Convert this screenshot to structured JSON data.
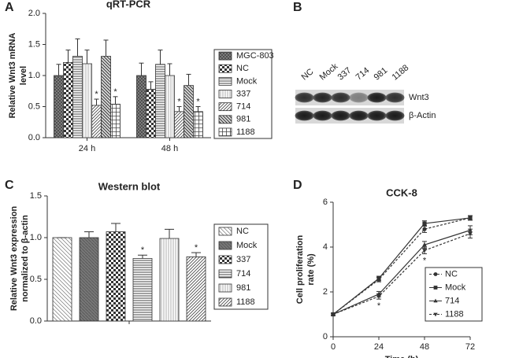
{
  "chart_data": [
    {
      "type": "bar",
      "panel": "A",
      "title": "qRT-PCR",
      "ylabel": [
        "Relative Wnt3 mRNA",
        "level"
      ],
      "categories": [
        "24 h",
        "48 h"
      ],
      "ylim": [
        0,
        2
      ],
      "yticks": [
        {
          "value": 0,
          "label": "0.0"
        },
        0.5,
        {
          "value": 1,
          "label": "1.0"
        },
        1.5,
        {
          "value": 2,
          "label": "2.0"
        }
      ],
      "series": [
        {
          "name": "MGC-803",
          "pattern": "dense",
          "values": [
            1.0,
            1.0
          ],
          "errors": [
            0.18,
            0.2
          ],
          "marks": [
            null,
            null
          ]
        },
        {
          "name": "NC",
          "pattern": "checker",
          "values": [
            1.21,
            0.78
          ],
          "errors": [
            0.2,
            0.12
          ],
          "marks": [
            null,
            null
          ]
        },
        {
          "name": "Mock",
          "pattern": "hlines",
          "values": [
            1.31,
            1.18
          ],
          "errors": [
            0.28,
            0.23
          ],
          "marks": [
            null,
            null
          ]
        },
        {
          "name": "337",
          "pattern": "vlines",
          "values": [
            1.19,
            1.0
          ],
          "errors": [
            0.22,
            0.19
          ],
          "marks": [
            null,
            null
          ]
        },
        {
          "name": "714",
          "pattern": "diag",
          "values": [
            0.52,
            0.42
          ],
          "errors": [
            0.1,
            0.08
          ],
          "marks": [
            "*",
            "*"
          ]
        },
        {
          "name": "981",
          "pattern": "bdiag",
          "values": [
            1.31,
            0.84
          ],
          "errors": [
            0.26,
            0.18
          ],
          "marks": [
            null,
            null
          ]
        },
        {
          "name": "1188",
          "pattern": "grid",
          "values": [
            0.54,
            0.42
          ],
          "errors": [
            0.12,
            0.08
          ],
          "marks": [
            "*",
            "*"
          ]
        }
      ]
    },
    {
      "type": "blot",
      "panel": "B",
      "lanes": [
        "NC",
        "Mock",
        "337",
        "714",
        "981",
        "1188"
      ],
      "rows": [
        "Wnt3",
        "β-Actin"
      ]
    },
    {
      "type": "bar",
      "panel": "C",
      "title": "Western blot",
      "ylabel": [
        "Relative Wnt3 expression",
        "normalized to β-actin"
      ],
      "ylim": [
        0,
        1.5
      ],
      "yticks": [
        {
          "value": 0,
          "label": "0.0"
        },
        0.5,
        {
          "value": 1,
          "label": "1.0"
        },
        1.5
      ],
      "series": [
        {
          "name": "NC",
          "pattern": "diagLight",
          "values": [
            1.0
          ],
          "errors": [
            0
          ],
          "marks": [
            null
          ]
        },
        {
          "name": "Mock",
          "pattern": "darkdiag",
          "values": [
            1.0
          ],
          "errors": [
            0.07
          ],
          "marks": [
            null
          ]
        },
        {
          "name": "337",
          "pattern": "checker",
          "values": [
            1.07
          ],
          "errors": [
            0.1
          ],
          "marks": [
            null
          ]
        },
        {
          "name": "714",
          "pattern": "hlines",
          "values": [
            0.75
          ],
          "errors": [
            0.04
          ],
          "marks": [
            "*"
          ]
        },
        {
          "name": "981",
          "pattern": "vlines",
          "values": [
            0.99
          ],
          "errors": [
            0.11
          ],
          "marks": [
            null
          ]
        },
        {
          "name": "1188",
          "pattern": "diag",
          "values": [
            0.77
          ],
          "errors": [
            0.05
          ],
          "marks": [
            "*"
          ]
        }
      ]
    },
    {
      "type": "line",
      "panel": "D",
      "title": "CCK-8",
      "xlabel": "Time (h)",
      "ylabel": [
        "Cell proliferation",
        "rate (%)"
      ],
      "x": [
        0,
        24,
        48,
        72
      ],
      "xlim": [
        0,
        72
      ],
      "xticks": [
        0,
        24,
        48,
        72
      ],
      "ylim": [
        0,
        6
      ],
      "yticks": [
        0,
        2,
        4,
        6
      ],
      "series": [
        {
          "name": "NC",
          "marker": "circle",
          "dash": true,
          "color": "#333333",
          "values": [
            1.0,
            2.55,
            4.8,
            5.3
          ],
          "errors": [
            0.05,
            0.1,
            0.15,
            0.1
          ],
          "marks": [
            null,
            null,
            null,
            null
          ]
        },
        {
          "name": "Mock",
          "marker": "square",
          "dash": false,
          "color": "#333333",
          "values": [
            1.0,
            2.6,
            5.05,
            5.3
          ],
          "errors": [
            0.05,
            0.1,
            0.12,
            0.1
          ],
          "marks": [
            null,
            null,
            null,
            null
          ]
        },
        {
          "name": "714",
          "marker": "triangle",
          "dash": false,
          "color": "#333333",
          "values": [
            1.0,
            1.9,
            4.1,
            4.75
          ],
          "errors": [
            0.05,
            0.12,
            0.15,
            0.2
          ],
          "marks": [
            null,
            null,
            null,
            null
          ]
        },
        {
          "name": "1188",
          "marker": "triangle-down",
          "dash": true,
          "color": "#333333",
          "values": [
            1.0,
            1.8,
            3.85,
            4.6
          ],
          "errors": [
            0.05,
            0.12,
            0.15,
            0.2
          ],
          "marks": [
            null,
            "*",
            "*",
            null
          ]
        }
      ]
    }
  ]
}
